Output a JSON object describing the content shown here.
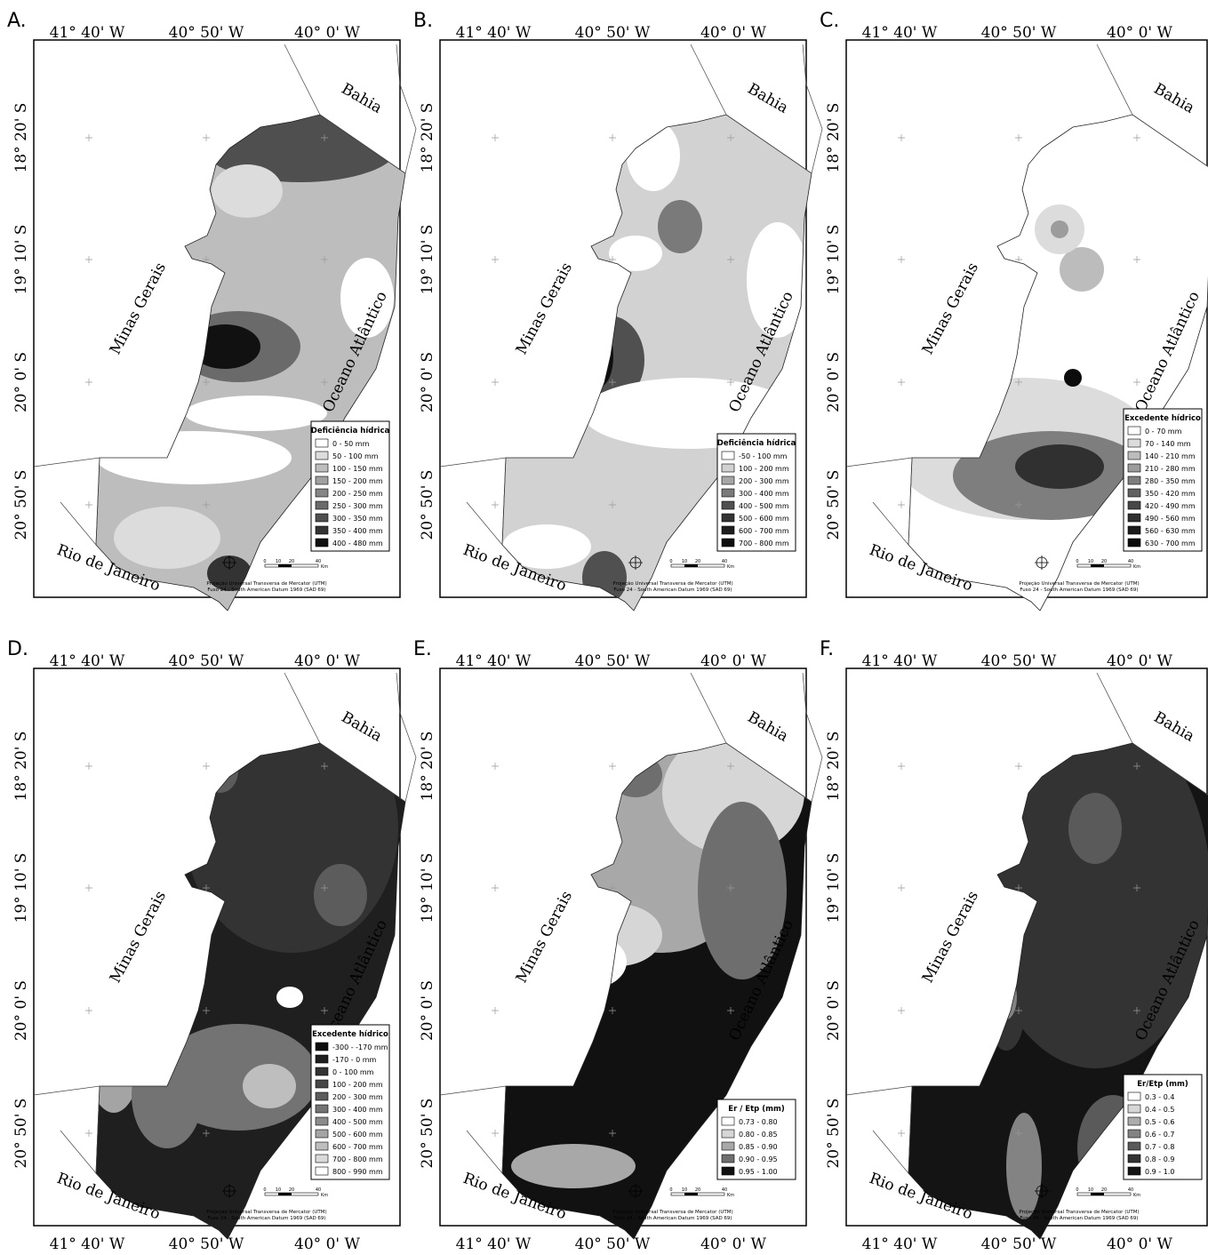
{
  "lon_labels": [
    "41° 40' W",
    "40° 50' W",
    "40° 0' W"
  ],
  "lat_labels": [
    "18° 20' S",
    "19° 10' S",
    "20° 0' S",
    "20° 50' S"
  ],
  "places": {
    "bahia": "Bahia",
    "minas": "Minas Gerais",
    "ocean": "Oceano Atlântico",
    "rio": "Rio de Janeiro"
  },
  "projection": [
    "Projeção Universal Transversa de Mercator (UTM)",
    "Fuso 24 - South American Datum 1969 (SAD 69)"
  ],
  "scale": {
    "ticks": [
      "0",
      "10",
      "20",
      "40"
    ],
    "unit": "Km"
  },
  "panels": [
    {
      "letter": "A.",
      "legend": {
        "title": "Deficiência hídrica",
        "items": [
          "0 - 50 mm",
          "50 - 100 mm",
          "100 - 150 mm",
          "150 - 200 mm",
          "200 - 250 mm",
          "250 - 300 mm",
          "300 - 350 mm",
          "350 - 400 mm",
          "400 - 480 mm"
        ],
        "colors": [
          "#ffffff",
          "#dcdcdc",
          "#bdbdbd",
          "#a0a0a0",
          "#858585",
          "#6a6a6a",
          "#4f4f4f",
          "#333333",
          "#111111"
        ]
      }
    },
    {
      "letter": "B.",
      "legend": {
        "title": "Deficiência hídrica",
        "items": [
          "-50 - 100 mm",
          "100 - 200 mm",
          "200 - 300 mm",
          "300 - 400 mm",
          "400 - 500 mm",
          "500 - 600 mm",
          "600 - 700 mm",
          "700 - 800 mm"
        ],
        "colors": [
          "#ffffff",
          "#d2d2d2",
          "#a6a6a6",
          "#7a7a7a",
          "#505050",
          "#333333",
          "#1e1e1e",
          "#0e0e0e"
        ]
      }
    },
    {
      "letter": "C.",
      "legend": {
        "title": "Excedente hídrico",
        "items": [
          "0 - 70 mm",
          "70 - 140 mm",
          "140 - 210 mm",
          "210 - 280 mm",
          "280 - 350 mm",
          "350 - 420 mm",
          "420 - 490 mm",
          "490 - 560 mm",
          "560 - 630 mm",
          "630 - 700 mm"
        ],
        "colors": [
          "#ffffff",
          "#dcdcdc",
          "#bcbcbc",
          "#9c9c9c",
          "#7e7e7e",
          "#626262",
          "#474747",
          "#303030",
          "#1c1c1c",
          "#0c0c0c"
        ]
      }
    },
    {
      "letter": "D.",
      "legend": {
        "title": "Excedente hídrico",
        "items": [
          "-300 - -170 mm",
          "-170 - 0 mm",
          "0 - 100 mm",
          "100 - 200 mm",
          "200 - 300 mm",
          "300 - 400 mm",
          "400 - 500 mm",
          "500 - 600 mm",
          "600 - 700 mm",
          "700 - 800 mm",
          "800 - 990 mm"
        ],
        "colors": [
          "#0c0c0c",
          "#1f1f1f",
          "#333333",
          "#474747",
          "#5c5c5c",
          "#737373",
          "#8b8b8b",
          "#a4a4a4",
          "#bebebe",
          "#dadada",
          "#ffffff"
        ]
      }
    },
    {
      "letter": "E.",
      "legend": {
        "title": "Er / Etp (mm)",
        "items": [
          "0.73 - 0.80",
          "0.80 - 0.85",
          "0.85 - 0.90",
          "0.90 - 0.95",
          "0.95 - 1.00"
        ],
        "colors": [
          "#ffffff",
          "#d6d6d6",
          "#a8a8a8",
          "#6e6e6e",
          "#111111"
        ]
      }
    },
    {
      "letter": "F.",
      "legend": {
        "title": "Er/Etp (mm)",
        "items": [
          "0.3 - 0.4",
          "0.4 - 0.5",
          "0.5 - 0.6",
          "0.6 - 0.7",
          "0.7 - 0.8",
          "0.8 - 0.9",
          "0.9 - 1.0"
        ],
        "colors": [
          "#ffffff",
          "#d6d6d6",
          "#acacac",
          "#838383",
          "#5a5a5a",
          "#333333",
          "#141414"
        ]
      }
    }
  ]
}
